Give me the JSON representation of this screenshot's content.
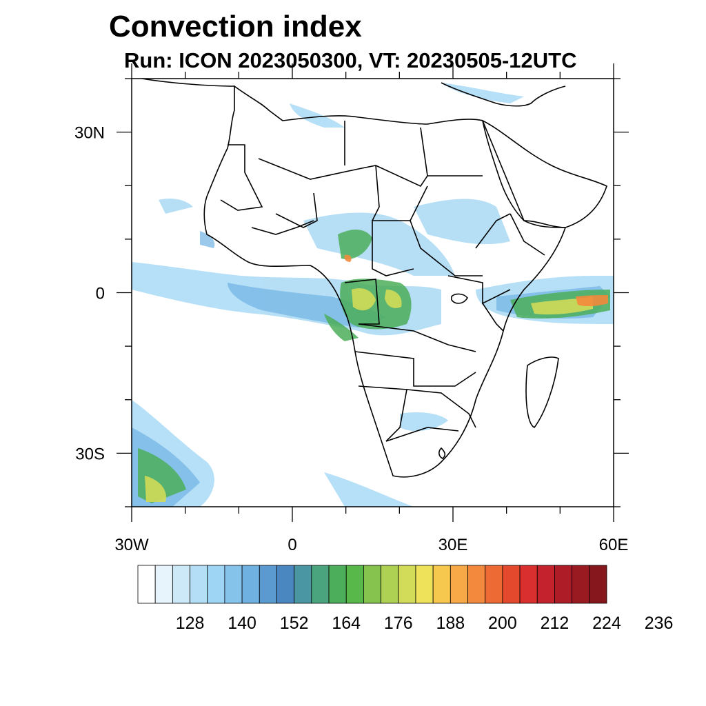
{
  "title": "Convection index",
  "subtitle": "Run: ICON 2023050300,  VT: 20230505-12UTC",
  "map": {
    "lon_range": [
      -30,
      60
    ],
    "lat_range": [
      -40,
      40
    ],
    "x_tick_labels": [
      {
        "lon": -30,
        "label": "30W"
      },
      {
        "lon": 0,
        "label": "0"
      },
      {
        "lon": 30,
        "label": "30E"
      },
      {
        "lon": 60,
        "label": "60E"
      }
    ],
    "y_tick_labels": [
      {
        "lat": 30,
        "label": "30N"
      },
      {
        "lat": 0,
        "label": "0"
      },
      {
        "lat": -30,
        "label": "30S"
      }
    ]
  },
  "colorbar": {
    "colors": [
      "#ffffff",
      "#e8f4fc",
      "#cde9f8",
      "#b4def6",
      "#9ed5f4",
      "#85c3ea",
      "#6fb2e2",
      "#5a9ad0",
      "#4a86c0",
      "#4a97a3",
      "#4aa47e",
      "#4cae5a",
      "#58b84a",
      "#86c24e",
      "#aed053",
      "#d2dc58",
      "#eee25a",
      "#f6c84e",
      "#f6a946",
      "#f3893c",
      "#ee6a34",
      "#e4492e",
      "#d92f2f",
      "#c4232e",
      "#ae1d27",
      "#9a1a22",
      "#86171c"
    ],
    "labels": [
      "128",
      "140",
      "152",
      "164",
      "176",
      "188",
      "200",
      "212",
      "224",
      "236"
    ]
  }
}
